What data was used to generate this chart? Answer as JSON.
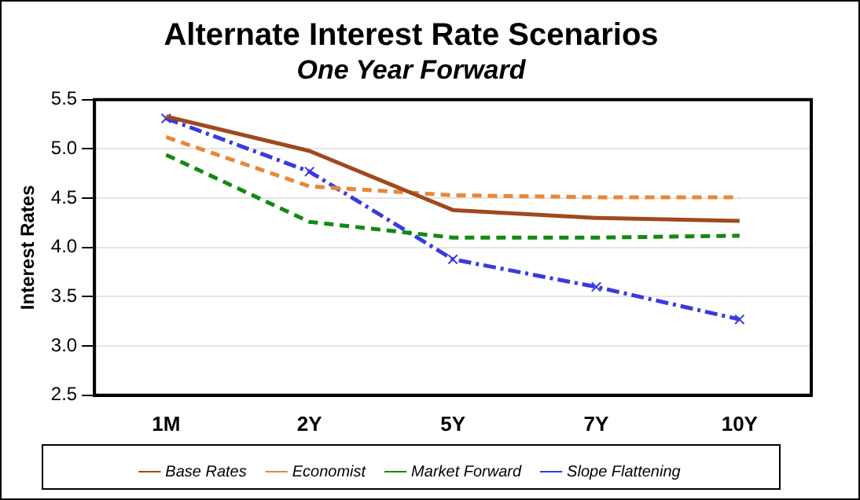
{
  "chart_data": {
    "type": "line",
    "title": "Alternate Interest Rate Scenarios",
    "subtitle": "One Year Forward",
    "ylabel": "Interest Rates",
    "categories": [
      "1M",
      "2Y",
      "5Y",
      "7Y",
      "10Y"
    ],
    "series": [
      {
        "name": "Base Rates",
        "color": "#a0481e",
        "line_style": "solid",
        "marker": "none",
        "values": [
          5.33,
          4.98,
          4.38,
          4.3,
          4.27
        ]
      },
      {
        "name": "Economist",
        "color": "#e8873a",
        "line_style": "dashed",
        "marker": "none",
        "values": [
          5.12,
          4.62,
          4.53,
          4.51,
          4.51
        ]
      },
      {
        "name": "Market Forward",
        "color": "#118a11",
        "line_style": "dashed",
        "marker": "none",
        "values": [
          4.94,
          4.26,
          4.1,
          4.1,
          4.12
        ]
      },
      {
        "name": "Slope Flattening",
        "color": "#3a3ae0",
        "line_style": "dashdot",
        "marker": "cross",
        "values": [
          5.31,
          4.77,
          3.88,
          3.6,
          3.27
        ]
      }
    ],
    "ylim": [
      2.5,
      5.5
    ],
    "yticks": [
      2.5,
      {
        "value": 3,
        "label": "3.0"
      },
      3.5,
      {
        "value": 4,
        "label": "4.0"
      },
      4.5,
      {
        "value": 5,
        "label": "5.0"
      },
      5.5
    ],
    "grid": "y",
    "legend": "bottom"
  }
}
